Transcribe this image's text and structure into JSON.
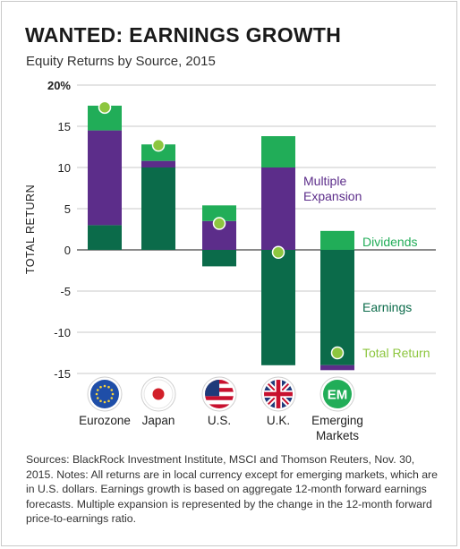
{
  "header": {
    "title": "WANTED: EARNINGS GROWTH",
    "subtitle": "Equity Returns by Source, 2015"
  },
  "footer": {
    "notes": "Sources: BlackRock Investment Institute, MSCI and Thomson Reuters, Nov. 30, 2015. Notes: All returns are in local currency except for emerging markets, which are in U.S. dollars. Earnings growth is based on aggregate 12-month forward earnings forecasts. Multiple expansion is represented by the change in the 12-month forward price-to-earnings ratio."
  },
  "colors": {
    "earnings": "#0b6b4a",
    "multiple_expansion": "#5c2d8a",
    "dividends": "#21ad58",
    "total_return": "#8dc63f"
  },
  "chart_data": {
    "type": "bar",
    "stacked": true,
    "title": "WANTED: EARNINGS GROWTH",
    "subtitle": "Equity Returns by Source, 2015",
    "ylabel": "TOTAL RETURN",
    "ylim": [
      -15,
      20
    ],
    "yticks": [
      -15,
      -10,
      -5,
      0,
      5,
      10,
      15,
      20
    ],
    "ytick_labels": [
      "-15",
      "-10",
      "-5",
      "0",
      "5",
      "10",
      "15",
      "20%"
    ],
    "grid": true,
    "categories": [
      "Eurozone",
      "Japan",
      "U.S.",
      "U.K.",
      "Emerging Markets"
    ],
    "category_icons": [
      "eu-flag-icon",
      "japan-flag-icon",
      "us-flag-icon",
      "uk-flag-icon",
      "em-badge-icon"
    ],
    "em_badge_text": "EM",
    "series": [
      {
        "name": "Earnings",
        "values": [
          3,
          10,
          -2,
          -14,
          -14
        ]
      },
      {
        "name": "Multiple Expansion",
        "values": [
          11.5,
          0.8,
          3.5,
          10,
          -0.6
        ]
      },
      {
        "name": "Dividends",
        "values": [
          3,
          2,
          1.9,
          3.8,
          2.3
        ]
      }
    ],
    "total_return": {
      "name": "Total Return",
      "values": [
        17.3,
        12.7,
        3.2,
        -0.3,
        -12.5
      ]
    },
    "legend_placement": "inline-right"
  }
}
